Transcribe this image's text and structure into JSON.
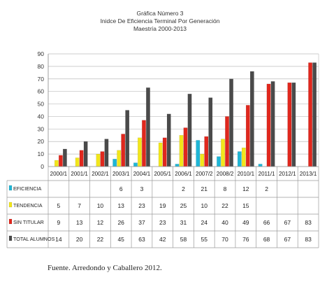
{
  "chart_data": {
    "type": "bar",
    "title": "Gráfica Número 3",
    "subtitle": "Inidce De Eficiencia Terminal Por Generación",
    "subtitle2": "Maestría 2000-2013",
    "categories": [
      "2000/1",
      "2001/1",
      "2002/1",
      "2003/1",
      "2004/1",
      "2005/1",
      "2006/1",
      "2007/2",
      "2008/2",
      "2010/1",
      "2011/1",
      "2012/1",
      "2013/1"
    ],
    "ylim": [
      0,
      90
    ],
    "yticks": [
      0,
      10,
      20,
      30,
      40,
      50,
      60,
      70,
      80,
      90
    ],
    "grid": true,
    "legend_placement": "table-left",
    "series": [
      {
        "name": "EFICIENCIA",
        "color": "#1fb6d6",
        "values": [
          null,
          null,
          null,
          6,
          3,
          null,
          2,
          21,
          8,
          12,
          2,
          null,
          null
        ],
        "labels": [
          "",
          "",
          "",
          "6",
          "3",
          "",
          "2",
          "21",
          "8",
          "12",
          "2",
          "",
          ""
        ]
      },
      {
        "name": "TENDENCIA",
        "color": "#f2e61a",
        "values": [
          5,
          7,
          10,
          13,
          23,
          19,
          25,
          10,
          22,
          15,
          null,
          null,
          null
        ],
        "labels": [
          "5",
          "7",
          "10",
          "13",
          "23",
          "19",
          "25",
          "10",
          "22",
          "15",
          "",
          "",
          ""
        ]
      },
      {
        "name": "SIN TITULAR",
        "color": "#e0271d",
        "values": [
          9,
          13,
          12,
          26,
          37,
          23,
          31,
          24,
          40,
          49,
          66,
          67,
          83
        ],
        "labels": [
          "9",
          "13",
          "12",
          "26",
          "37",
          "23",
          "31",
          "24",
          "40",
          "49",
          "66",
          "67",
          "83"
        ]
      },
      {
        "name": "TOTAL ALUMNOS",
        "color": "#4a4a4a",
        "values": [
          14,
          20,
          22,
          45,
          63,
          42,
          58,
          55,
          70,
          76,
          68,
          67,
          83
        ],
        "labels": [
          "14",
          "20",
          "22",
          "45",
          "63",
          "42",
          "58",
          "55",
          "70",
          "76",
          "68",
          "67",
          "83"
        ]
      }
    ]
  },
  "source": "Fuente. Arredondo y Caballero 2012."
}
